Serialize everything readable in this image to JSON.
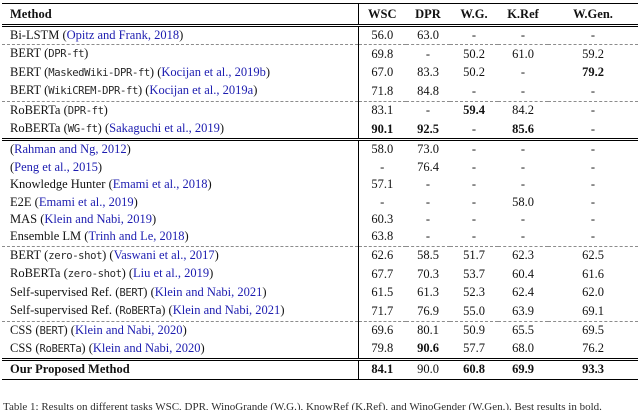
{
  "table": {
    "columns": [
      "Method",
      "WSC",
      "DPR",
      "W.G.",
      "K.Ref",
      "W.Gen."
    ],
    "link_color": "#1c1cb0",
    "groups": [
      {
        "blocks": [
          {
            "rows": [
              {
                "name": "Bi-LSTM",
                "mono": "",
                "cite": "Opitz and Frank, 2018",
                "values": [
                  "56.0",
                  "63.0",
                  "-",
                  "-",
                  "-"
                ],
                "bold": [
                  false,
                  false,
                  false,
                  false,
                  false
                ]
              }
            ]
          },
          {
            "rows": [
              {
                "name": "BERT",
                "mono": "DPR-ft",
                "cite": "",
                "values": [
                  "69.8",
                  "-",
                  "50.2",
                  "61.0",
                  "59.2"
                ],
                "bold": [
                  false,
                  false,
                  false,
                  false,
                  false
                ]
              },
              {
                "name": "BERT",
                "mono": "MaskedWiki-DPR-ft",
                "cite": "Kocijan et al., 2019b",
                "values": [
                  "67.0",
                  "83.3",
                  "50.2",
                  "-",
                  "79.2"
                ],
                "bold": [
                  false,
                  false,
                  false,
                  false,
                  true
                ]
              },
              {
                "name": "BERT",
                "mono": "WikiCREM-DPR-ft",
                "cite": "Kocijan et al., 2019a",
                "values": [
                  "71.8",
                  "84.8",
                  "-",
                  "-",
                  "-"
                ],
                "bold": [
                  false,
                  false,
                  false,
                  false,
                  false
                ]
              }
            ]
          },
          {
            "rows": [
              {
                "name": "RoBERTa",
                "mono": "DPR-ft",
                "cite": "",
                "values": [
                  "83.1",
                  "-",
                  "59.4",
                  "84.2",
                  "-"
                ],
                "bold": [
                  false,
                  false,
                  true,
                  false,
                  false
                ]
              },
              {
                "name": "RoBERTa",
                "mono": "WG-ft",
                "cite": "Sakaguchi et al., 2019",
                "values": [
                  "90.1",
                  "92.5",
                  "-",
                  "85.6",
                  "-"
                ],
                "bold": [
                  true,
                  true,
                  false,
                  true,
                  false
                ]
              }
            ]
          }
        ]
      },
      {
        "blocks": [
          {
            "rows": [
              {
                "name": "",
                "mono": "",
                "cite": "Rahman and Ng, 2012",
                "values": [
                  "58.0",
                  "73.0",
                  "-",
                  "-",
                  "-"
                ],
                "bold": [
                  false,
                  false,
                  false,
                  false,
                  false
                ]
              },
              {
                "name": "",
                "mono": "",
                "cite": "Peng et al., 2015",
                "values": [
                  "-",
                  "76.4",
                  "-",
                  "-",
                  "-"
                ],
                "bold": [
                  false,
                  false,
                  false,
                  false,
                  false
                ]
              },
              {
                "name": "Knowledge Hunter",
                "mono": "",
                "cite": "Emami et al., 2018",
                "values": [
                  "57.1",
                  "-",
                  "-",
                  "-",
                  "-"
                ],
                "bold": [
                  false,
                  false,
                  false,
                  false,
                  false
                ]
              },
              {
                "name": "E2E",
                "mono": "",
                "cite": "Emami et al., 2019",
                "values": [
                  "-",
                  "-",
                  "-",
                  "58.0",
                  "-"
                ],
                "bold": [
                  false,
                  false,
                  false,
                  false,
                  false
                ]
              },
              {
                "name": "MAS",
                "mono": "",
                "cite": "Klein and Nabi, 2019",
                "values": [
                  "60.3",
                  "-",
                  "-",
                  "-",
                  "-"
                ],
                "bold": [
                  false,
                  false,
                  false,
                  false,
                  false
                ]
              },
              {
                "name": "Ensemble LM",
                "mono": "",
                "cite": "Trinh and Le, 2018",
                "values": [
                  "63.8",
                  "-",
                  "-",
                  "-",
                  "-"
                ],
                "bold": [
                  false,
                  false,
                  false,
                  false,
                  false
                ]
              }
            ]
          },
          {
            "rows": [
              {
                "name": "BERT",
                "mono": "zero-shot",
                "cite": "Vaswani et al., 2017",
                "values": [
                  "62.6",
                  "58.5",
                  "51.7",
                  "62.3",
                  "62.5"
                ],
                "bold": [
                  false,
                  false,
                  false,
                  false,
                  false
                ]
              },
              {
                "name": "RoBERTa",
                "mono": "zero-shot",
                "cite": "Liu et al., 2019",
                "values": [
                  "67.7",
                  "70.3",
                  "53.7",
                  "60.4",
                  "61.6"
                ],
                "bold": [
                  false,
                  false,
                  false,
                  false,
                  false
                ]
              },
              {
                "name": "Self-supervised Ref.",
                "mono": "BERT",
                "cite": "Klein and Nabi, 2021",
                "values": [
                  "61.5",
                  "61.3",
                  "52.3",
                  "62.4",
                  "62.0"
                ],
                "bold": [
                  false,
                  false,
                  false,
                  false,
                  false
                ]
              },
              {
                "name": "Self-supervised Ref.",
                "mono": "RoBERTa",
                "cite": "Klein and Nabi, 2021",
                "values": [
                  "71.7",
                  "76.9",
                  "55.0",
                  "63.9",
                  "69.1"
                ],
                "bold": [
                  false,
                  false,
                  false,
                  false,
                  false
                ]
              }
            ]
          },
          {
            "rows": [
              {
                "name": "CSS",
                "mono": "BERT",
                "cite": "Klein and Nabi, 2020",
                "values": [
                  "69.6",
                  "80.1",
                  "50.9",
                  "65.5",
                  "69.5"
                ],
                "bold": [
                  false,
                  false,
                  false,
                  false,
                  false
                ]
              },
              {
                "name": "CSS",
                "mono": "RoBERTa",
                "cite": "Klein and Nabi, 2020",
                "values": [
                  "79.8",
                  "90.6",
                  "57.7",
                  "68.0",
                  "76.2"
                ],
                "bold": [
                  false,
                  true,
                  false,
                  false,
                  false
                ]
              }
            ]
          }
        ]
      },
      {
        "blocks": [
          {
            "rows": [
              {
                "name": "Our Proposed Method",
                "bold_name": true,
                "mono": "",
                "cite": "",
                "values": [
                  "84.1",
                  "90.0",
                  "60.8",
                  "69.9",
                  "93.3"
                ],
                "bold": [
                  true,
                  false,
                  true,
                  true,
                  true
                ]
              }
            ]
          }
        ]
      }
    ]
  },
  "caption": "Table 1: Results on different tasks WSC, DPR, WinoGrande (W.G.), KnowRef (K.Ref), and WinoGender (W.Gen.). Best results in bold."
}
